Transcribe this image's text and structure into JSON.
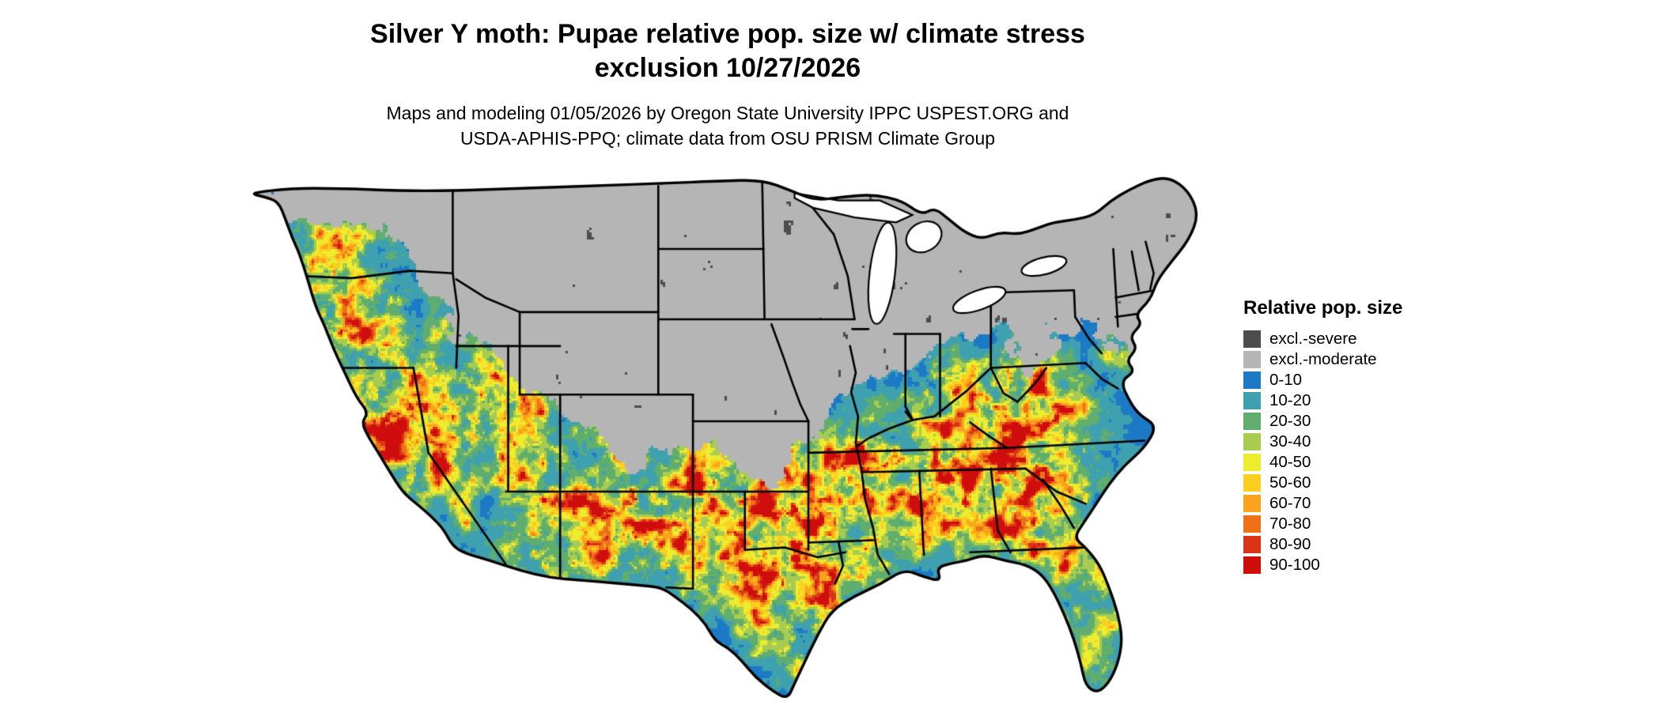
{
  "header": {
    "title_line1": "Silver Y moth: Pupae relative pop. size w/ climate stress",
    "title_line2": "exclusion 10/27/2026",
    "subtitle_line1": "Maps and modeling 01/05/2026 by Oregon State University IPPC USPEST.ORG and",
    "subtitle_line2": "USDA-APHIS-PPQ; climate data from OSU PRISM Climate Group"
  },
  "map": {
    "region": "Contiguous United States",
    "border_color": "#000000",
    "background": "#ffffff"
  },
  "legend": {
    "title": "Relative pop. size",
    "entries": [
      {
        "label": "excl.-severe",
        "color": "#4d4d4d"
      },
      {
        "label": "excl.-moderate",
        "color": "#b5b5b5"
      },
      {
        "label": "0-10",
        "color": "#1b79c6"
      },
      {
        "label": "10-20",
        "color": "#3fa0af"
      },
      {
        "label": "20-30",
        "color": "#5fae6e"
      },
      {
        "label": "30-40",
        "color": "#a7cc50"
      },
      {
        "label": "40-50",
        "color": "#eded2f"
      },
      {
        "label": "50-60",
        "color": "#fccf1f"
      },
      {
        "label": "60-70",
        "color": "#fba31c"
      },
      {
        "label": "70-80",
        "color": "#ee7118"
      },
      {
        "label": "80-90",
        "color": "#d93418"
      },
      {
        "label": "90-100",
        "color": "#cf0d0d"
      }
    ]
  }
}
